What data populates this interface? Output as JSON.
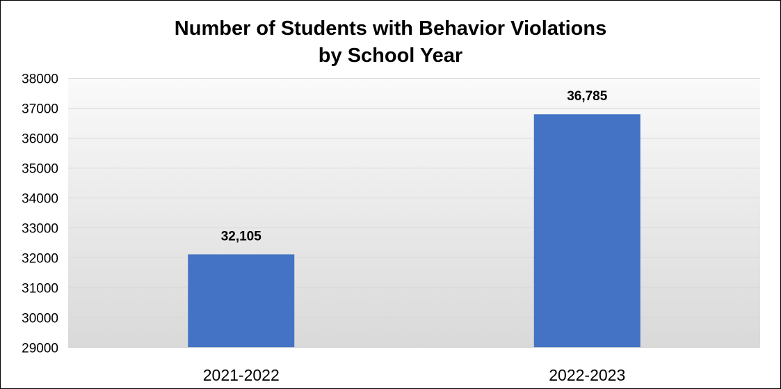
{
  "chart_data": {
    "type": "bar",
    "title_line1": "Number of Students with Behavior Violations",
    "title_line2": "by School Year",
    "xlabel": "",
    "ylabel": "",
    "categories": [
      "2021-2022",
      "2022-2023"
    ],
    "values": [
      32105,
      36785
    ],
    "data_labels": [
      "32,105",
      "36,785"
    ],
    "ylim": [
      29000,
      38000
    ],
    "yticks": [
      29000,
      30000,
      31000,
      32000,
      33000,
      34000,
      35000,
      36000,
      37000,
      38000
    ],
    "ytick_labels": [
      "29000",
      "30000",
      "31000",
      "32000",
      "33000",
      "34000",
      "35000",
      "36000",
      "37000",
      "38000"
    ],
    "grid": true,
    "legend": "none",
    "bar_color": "#4472C4",
    "background_gradient": [
      "#FAFAFA",
      "#D9D9D9"
    ],
    "gridline_color": "#D9D9D9"
  }
}
